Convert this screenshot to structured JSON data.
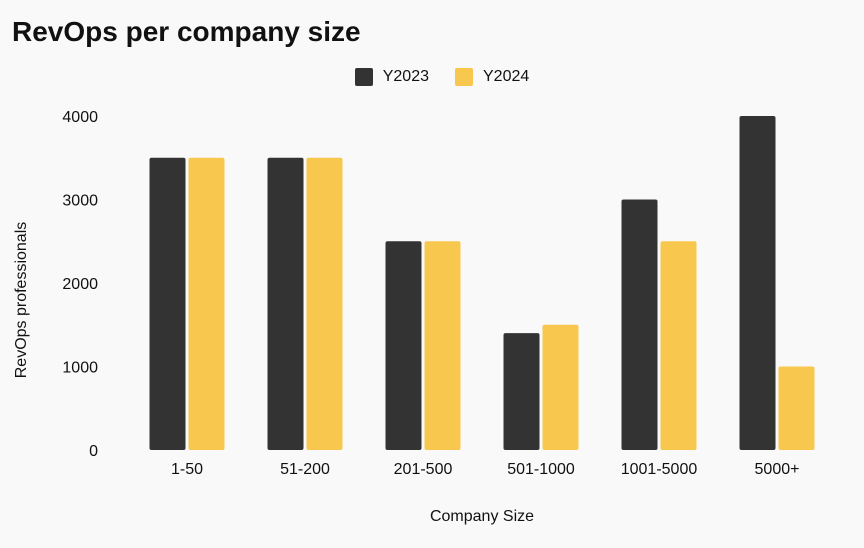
{
  "chart_data": {
    "type": "bar",
    "title": "RevOps per company size",
    "xlabel": "Company Size",
    "ylabel": "RevOps professionals",
    "categories": [
      "1-50",
      "51-200",
      "201-500",
      "501-1000",
      "1001-5000",
      "5000+"
    ],
    "series": [
      {
        "name": "Y2023",
        "color": "#333333",
        "values": [
          3500,
          3500,
          2500,
          1400,
          3000,
          4000
        ]
      },
      {
        "name": "Y2024",
        "color": "#f8c74e",
        "values": [
          3500,
          3500,
          2500,
          1500,
          2500,
          1000
        ]
      }
    ],
    "ylim": [
      0,
      4000
    ],
    "yticks": [
      0,
      1000,
      2000,
      3000,
      4000
    ],
    "legend_position": "top-center",
    "grid": false
  }
}
